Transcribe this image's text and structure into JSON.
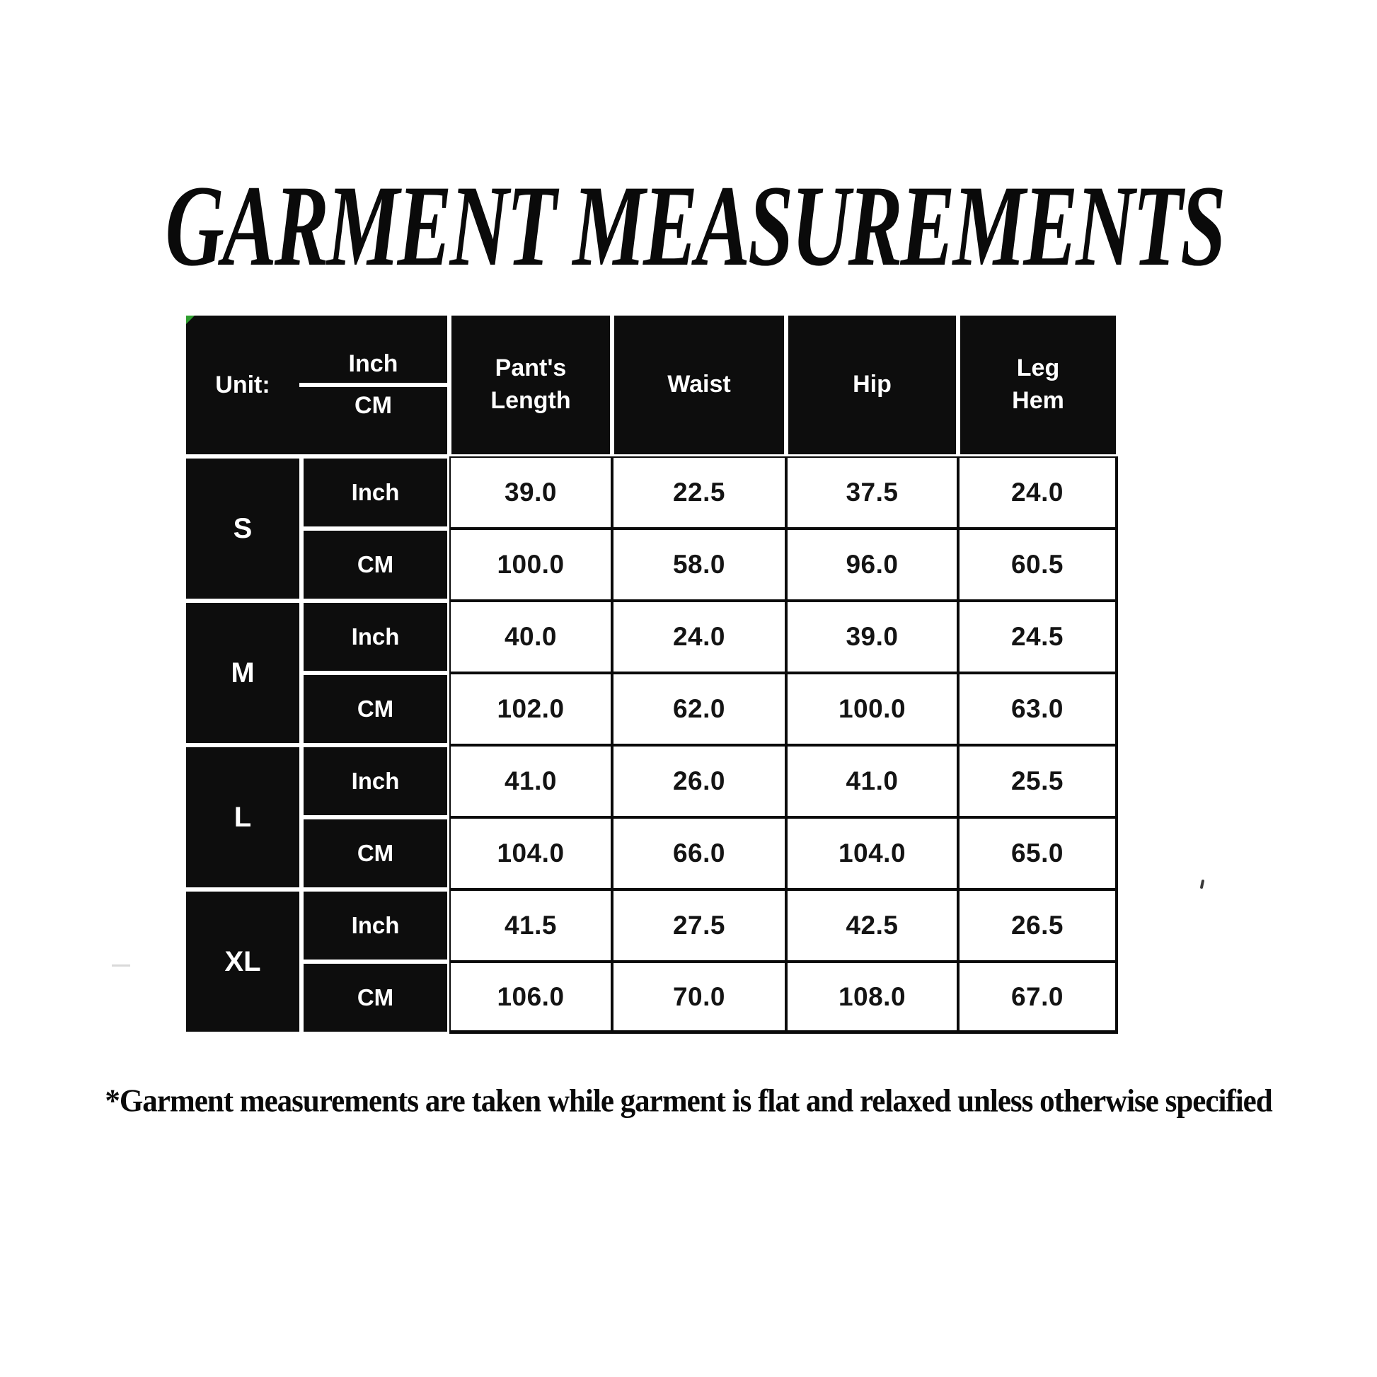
{
  "title": "GARMENT MEASUREMENTS",
  "footnote": "*Garment measurements are taken while garment is flat and relaxed unless otherwise specified",
  "colors": {
    "cell_background": "#0d0d0d",
    "cell_text": "#ffffff",
    "data_text": "#141414",
    "page_background": "#ffffff",
    "corner_marker_green": "#2f9e2f"
  },
  "chart_data": {
    "type": "table",
    "title": "GARMENT MEASUREMENTS",
    "header": {
      "unit_label": "Unit:",
      "unit_top": "Inch",
      "unit_bottom": "CM",
      "columns": [
        "Pant's\nLength",
        "Waist",
        "Hip",
        "Leg\nHem"
      ]
    },
    "unit_labels": [
      "Inch",
      "CM"
    ],
    "rows": [
      {
        "size": "S",
        "inch": [
          "39.0",
          "22.5",
          "37.5",
          "24.0"
        ],
        "cm": [
          "100.0",
          "58.0",
          "96.0",
          "60.5"
        ]
      },
      {
        "size": "M",
        "inch": [
          "40.0",
          "24.0",
          "39.0",
          "24.5"
        ],
        "cm": [
          "102.0",
          "62.0",
          "100.0",
          "63.0"
        ]
      },
      {
        "size": "L",
        "inch": [
          "41.0",
          "26.0",
          "41.0",
          "25.5"
        ],
        "cm": [
          "104.0",
          "66.0",
          "104.0",
          "65.0"
        ]
      },
      {
        "size": "XL",
        "inch": [
          "41.5",
          "27.5",
          "42.5",
          "26.5"
        ],
        "cm": [
          "106.0",
          "70.0",
          "108.0",
          "67.0"
        ]
      }
    ],
    "footnote": "*Garment measurements are taken while garment is flat and relaxed unless otherwise specified"
  }
}
